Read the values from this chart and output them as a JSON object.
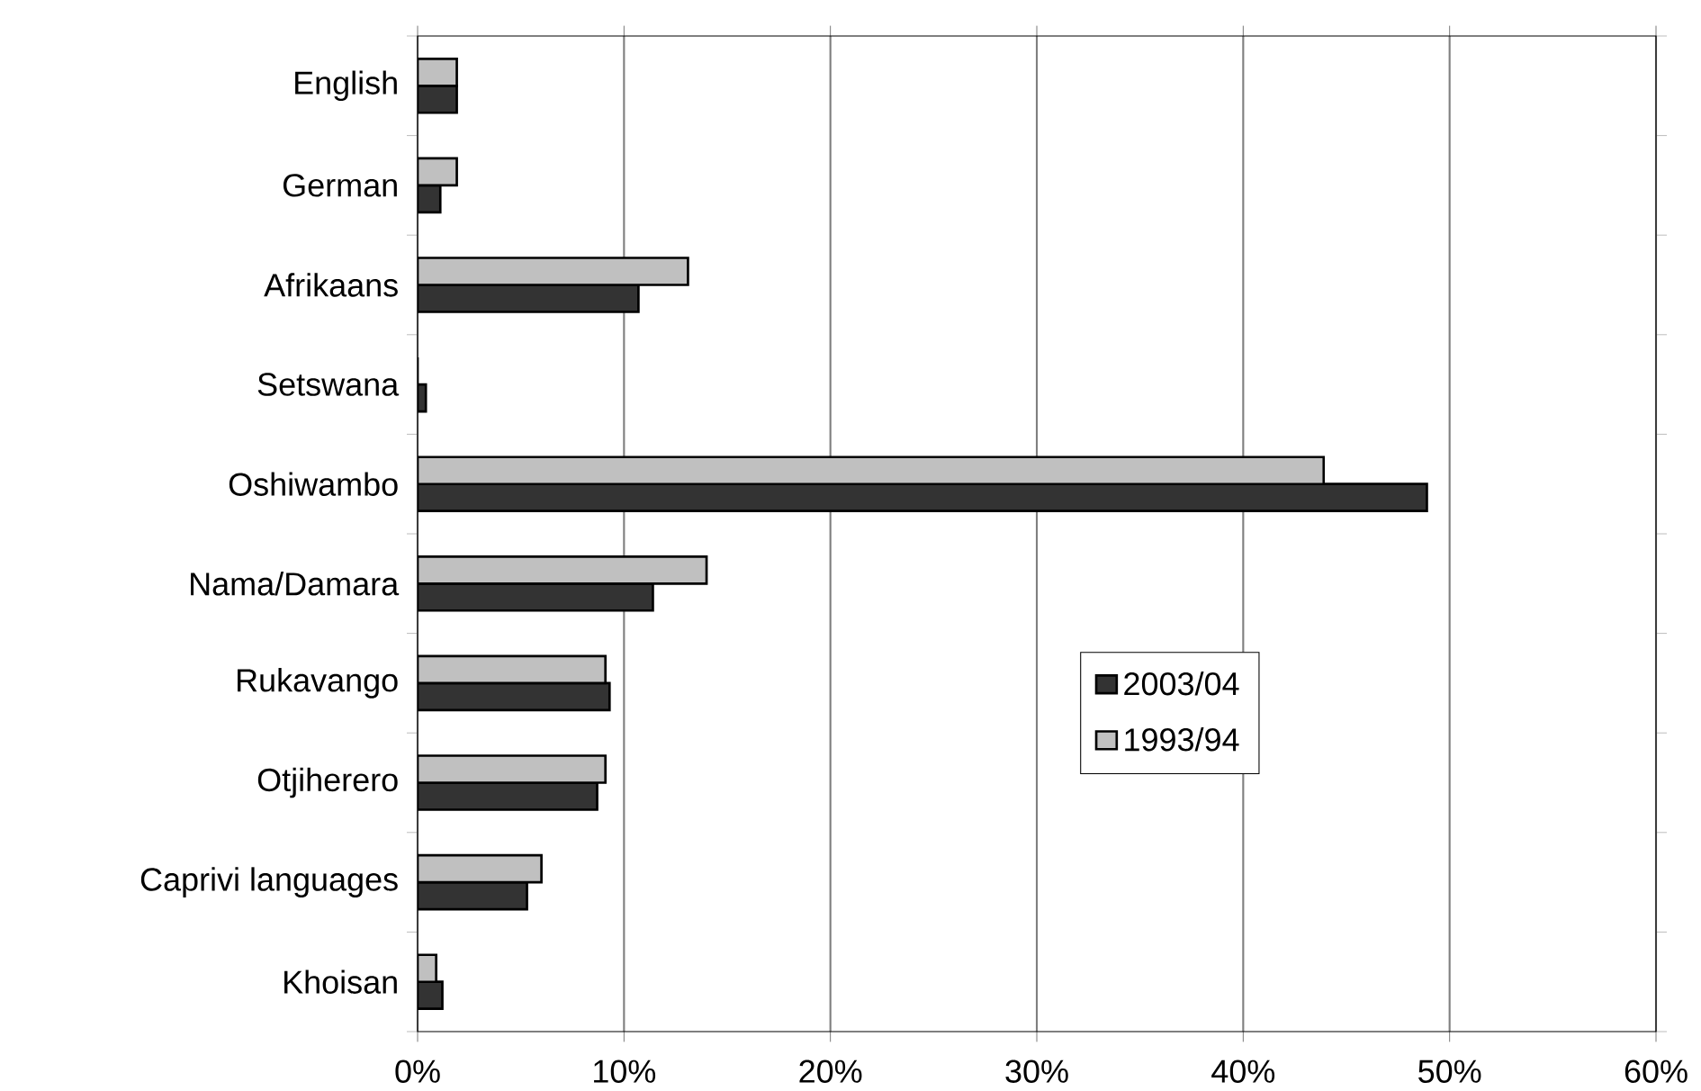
{
  "chart_data": {
    "type": "bar",
    "orientation": "horizontal",
    "categories": [
      "English",
      "German",
      "Afrikaans",
      "Setswana",
      "Oshiwambo",
      "Nama/Damara",
      "Rukavango",
      "Otjiherero",
      "Caprivi languages",
      "Khoisan"
    ],
    "series": [
      {
        "name": "2003/04",
        "color": "#333333",
        "values": [
          1.9,
          1.1,
          10.7,
          0.4,
          48.9,
          11.4,
          9.3,
          8.7,
          5.3,
          1.2
        ]
      },
      {
        "name": "1993/94",
        "color": "#c0c0c0",
        "values": [
          1.9,
          1.9,
          13.1,
          0,
          43.9,
          14.0,
          9.1,
          9.1,
          6.0,
          0.9
        ]
      }
    ],
    "xlim": [
      0,
      60
    ],
    "xticks": [
      {
        "value": 0,
        "label": "0%"
      },
      {
        "value": 10,
        "label": "10%"
      },
      {
        "value": 20,
        "label": "20%"
      },
      {
        "value": 30,
        "label": "30%"
      },
      {
        "value": 40,
        "label": "40%"
      },
      {
        "value": 50,
        "label": "50%"
      },
      {
        "value": 60,
        "label": "60%"
      }
    ],
    "grid": "x",
    "legend": "right"
  }
}
